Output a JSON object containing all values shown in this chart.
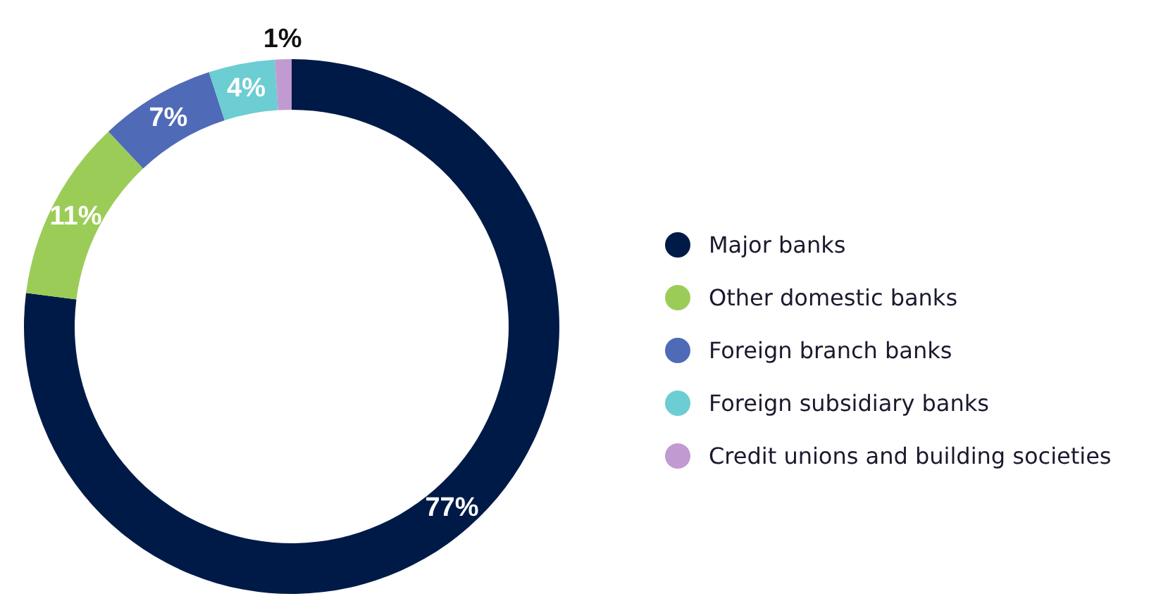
{
  "chart_data": {
    "type": "donut",
    "categories": [
      "Major banks",
      "Other domestic banks",
      "Foreign branch banks",
      "Foreign subsidiary banks",
      "Credit unions and building societies"
    ],
    "values": [
      77,
      11,
      7,
      4,
      1
    ],
    "value_labels": [
      "77%",
      "11%",
      "7%",
      "4%",
      "1%"
    ],
    "colors": [
      "#001a48",
      "#9ccc58",
      "#4f6ab7",
      "#6ccdd2",
      "#c09ad0"
    ],
    "legend": "right"
  }
}
